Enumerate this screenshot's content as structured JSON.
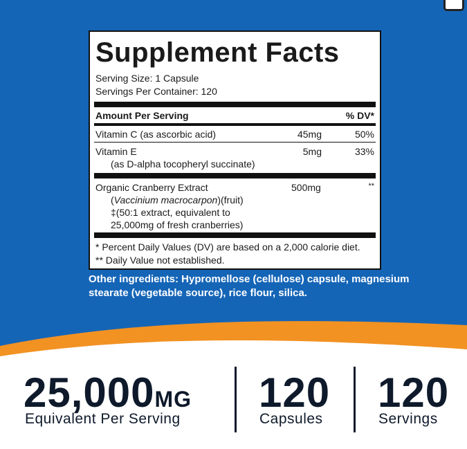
{
  "facts": {
    "title": "Supplement Facts",
    "serving_size": "Serving Size: 1 Capsule",
    "servings_per_container": "Servings Per Container: 120",
    "header": {
      "amount": "Amount Per Serving",
      "dv": "% DV*"
    },
    "rows": [
      {
        "name": "Vitamin C (as ascorbic acid)",
        "amount": "45mg",
        "dv": "50%"
      },
      {
        "name": "Vitamin E",
        "detail": [
          "(as D-alpha tocopheryl succinate)"
        ],
        "amount": "5mg",
        "dv": "33%"
      },
      {
        "name": "Organic Cranberry Extract",
        "species": [
          "(",
          "Vaccinium macrocarpon",
          ")(fruit)"
        ],
        "detail": [
          "‡(50:1 extract, equivalent to",
          "25,000mg of fresh cranberries)"
        ],
        "amount": "500mg",
        "dv": "**"
      }
    ],
    "footnotes": [
      "* Percent Daily Values (DV) are based on a 2,000 calorie diet.",
      "** Daily Value not established."
    ]
  },
  "other_ingredients": [
    "Other ingredients: Hypromellose (cellulose) capsule, magnesium",
    "stearate (vegetable source), rice flour, silica."
  ],
  "stats": [
    {
      "number": "25,000",
      "unit": "MG",
      "label": "Equivalent Per Serving"
    },
    {
      "number": "120",
      "label": "Capsules"
    },
    {
      "number": "120",
      "label": "Servings"
    }
  ]
}
